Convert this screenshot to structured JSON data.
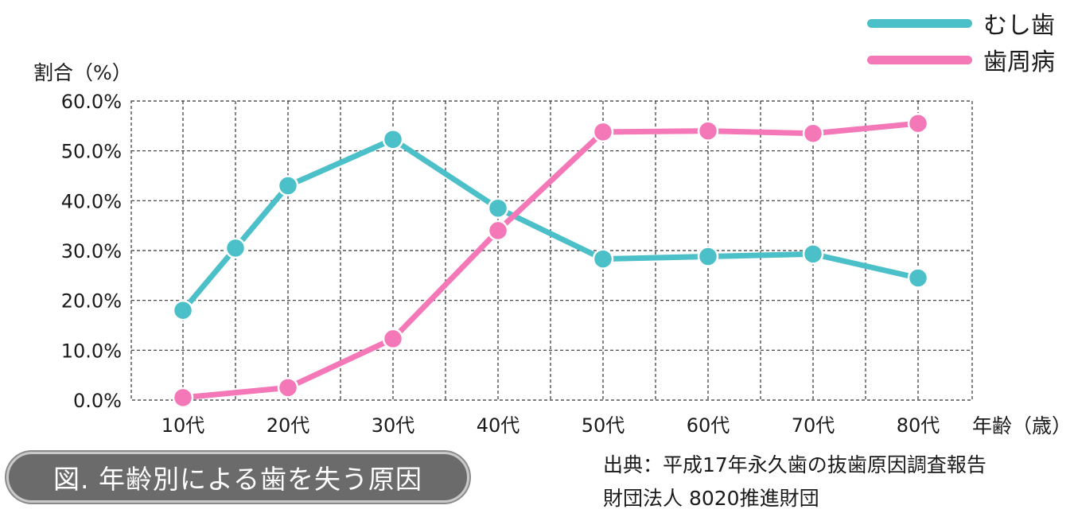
{
  "chart_data": {
    "type": "line",
    "ylabel": "割合（%）",
    "xlabel": "年齢（歳）",
    "categories": [
      "10代",
      "20代",
      "30代",
      "40代",
      "50代",
      "60代",
      "70代",
      "80代"
    ],
    "x": [
      10,
      15,
      20,
      30,
      40,
      50,
      60,
      70,
      80
    ],
    "series": [
      {
        "name": "むし歯",
        "color": "#4cc0c9",
        "points": [
          [
            10,
            18.0
          ],
          [
            15,
            30.5
          ],
          [
            20,
            43.0
          ],
          [
            30,
            52.3
          ],
          [
            40,
            38.5
          ],
          [
            50,
            28.3
          ],
          [
            60,
            28.8
          ],
          [
            70,
            29.3
          ],
          [
            80,
            24.5
          ]
        ]
      },
      {
        "name": "歯周病",
        "color": "#f478b8",
        "points": [
          [
            10,
            0.5
          ],
          [
            20,
            2.5
          ],
          [
            30,
            12.3
          ],
          [
            40,
            34.0
          ],
          [
            50,
            53.8
          ],
          [
            60,
            54.0
          ],
          [
            70,
            53.5
          ],
          [
            80,
            55.5
          ]
        ]
      }
    ],
    "yticks": [
      "0.0%",
      "10.0%",
      "20.0%",
      "30.0%",
      "40.0%",
      "50.0%",
      "60.0%"
    ],
    "ylim": [
      0,
      60
    ],
    "grid": true,
    "legend_position": "top-right"
  },
  "legend": [
    {
      "label": "むし歯",
      "color": "#4cc0c9"
    },
    {
      "label": "歯周病",
      "color": "#f478b8"
    }
  ],
  "caption": "図. 年齢別による歯を失う原因",
  "source": {
    "line1": "出典：平成17年永久歯の抜歯原因調査報告",
    "line2": "財団法人 8020推進財団"
  }
}
